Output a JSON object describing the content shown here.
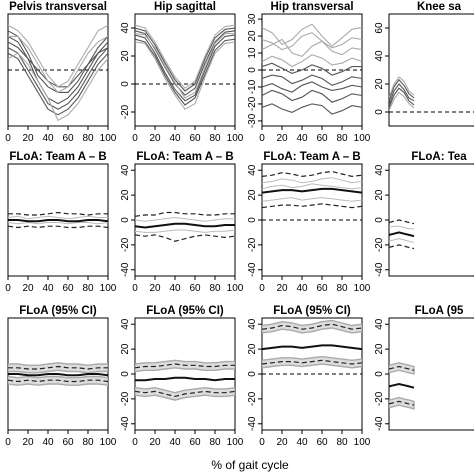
{
  "figure": {
    "xlabel": "% of gait cycle"
  },
  "chart_data": [
    {
      "type": "line",
      "title": "Pelvis transversal",
      "row": 0,
      "col": 0,
      "xlim": [
        0,
        100
      ],
      "ylim": [
        -10,
        10
      ],
      "yticks": [],
      "xticks": [
        0,
        20,
        40,
        60,
        80,
        100
      ],
      "zero_line": true,
      "series_kind": "curves",
      "x": [
        0,
        10,
        20,
        30,
        40,
        50,
        60,
        70,
        80,
        90,
        100
      ],
      "series": [
        {
          "color": "#555555",
          "values": [
            6,
            5,
            2,
            -2,
            -5,
            -6,
            -5,
            -3,
            0,
            3,
            5
          ]
        },
        {
          "color": "#555555",
          "values": [
            4,
            3,
            0,
            -3,
            -6,
            -7,
            -6,
            -4,
            -1,
            2,
            4
          ]
        },
        {
          "color": "#555555",
          "values": [
            7,
            6,
            3,
            -1,
            -3,
            -4,
            -4,
            -2,
            1,
            4,
            6
          ]
        },
        {
          "color": "#555555",
          "values": [
            3,
            2,
            -1,
            -4,
            -7,
            -8,
            -7,
            -5,
            -2,
            1,
            3
          ]
        },
        {
          "color": "#555555",
          "values": [
            5,
            4,
            2,
            0,
            -2,
            -3,
            -3,
            -1,
            1,
            3,
            4
          ]
        },
        {
          "color": "#aaaaaa",
          "values": [
            6,
            6,
            4,
            1,
            -2,
            -4,
            -3,
            0,
            3,
            5,
            6
          ]
        },
        {
          "color": "#aaaaaa",
          "values": [
            2,
            3,
            1,
            -2,
            -5,
            -9,
            -8,
            -6,
            -3,
            0,
            2
          ]
        },
        {
          "color": "#aaaaaa",
          "values": [
            8,
            7,
            5,
            2,
            -1,
            -3,
            -2,
            1,
            4,
            7,
            8
          ]
        }
      ]
    },
    {
      "type": "line",
      "title": "Hip sagittal",
      "row": 0,
      "col": 1,
      "xlim": [
        0,
        100
      ],
      "ylim": [
        -30,
        50
      ],
      "yticks": [
        -20,
        0,
        20,
        40
      ],
      "xticks": [
        0,
        20,
        40,
        60,
        80,
        100
      ],
      "zero_line": true,
      "series_kind": "curves",
      "x": [
        0,
        10,
        20,
        30,
        40,
        50,
        60,
        70,
        80,
        90,
        100
      ],
      "series": [
        {
          "color": "#555555",
          "values": [
            38,
            36,
            25,
            12,
            0,
            -8,
            -3,
            15,
            30,
            37,
            38
          ]
        },
        {
          "color": "#555555",
          "values": [
            35,
            33,
            22,
            8,
            -4,
            -12,
            -8,
            10,
            27,
            34,
            35
          ]
        },
        {
          "color": "#555555",
          "values": [
            40,
            38,
            28,
            15,
            3,
            -5,
            0,
            18,
            33,
            39,
            40
          ]
        },
        {
          "color": "#555555",
          "values": [
            32,
            30,
            20,
            6,
            -6,
            -15,
            -10,
            7,
            24,
            31,
            32
          ]
        },
        {
          "color": "#aaaaaa",
          "values": [
            36,
            35,
            26,
            13,
            1,
            -10,
            -6,
            12,
            29,
            36,
            36
          ]
        },
        {
          "color": "#aaaaaa",
          "values": [
            30,
            29,
            18,
            4,
            -8,
            -18,
            -14,
            5,
            22,
            29,
            30
          ]
        },
        {
          "color": "#aaaaaa",
          "values": [
            42,
            40,
            30,
            17,
            5,
            -3,
            2,
            20,
            35,
            41,
            42
          ]
        }
      ]
    },
    {
      "type": "line",
      "title": "Hip transversal",
      "row": 0,
      "col": 2,
      "xlim": [
        0,
        100
      ],
      "ylim": [
        -33,
        33
      ],
      "yticks": [
        -30,
        -20,
        -10,
        0,
        10,
        20,
        30
      ],
      "xticks": [
        0,
        20,
        40,
        60,
        80,
        100
      ],
      "zero_line": true,
      "series_kind": "curves",
      "x": [
        0,
        10,
        20,
        30,
        40,
        50,
        60,
        70,
        80,
        90,
        100
      ],
      "series": [
        {
          "color": "#555555",
          "values": [
            -5,
            -3,
            -4,
            -8,
            -6,
            -3,
            -5,
            -9,
            -7,
            -4,
            -5
          ]
        },
        {
          "color": "#555555",
          "values": [
            -15,
            -12,
            -14,
            -18,
            -16,
            -12,
            -14,
            -19,
            -17,
            -14,
            -15
          ]
        },
        {
          "color": "#555555",
          "values": [
            -22,
            -20,
            -23,
            -25,
            -22,
            -20,
            -21,
            -26,
            -24,
            -21,
            -22
          ]
        },
        {
          "color": "#555555",
          "values": [
            2,
            4,
            1,
            -2,
            0,
            3,
            1,
            -3,
            -1,
            2,
            2
          ]
        },
        {
          "color": "#555555",
          "values": [
            -10,
            -8,
            -11,
            -13,
            -9,
            -7,
            -10,
            -12,
            -11,
            -9,
            -10
          ]
        },
        {
          "color": "#aaaaaa",
          "values": [
            25,
            22,
            15,
            18,
            24,
            27,
            20,
            14,
            19,
            24,
            25
          ]
        },
        {
          "color": "#aaaaaa",
          "values": [
            12,
            15,
            18,
            10,
            8,
            14,
            17,
            11,
            9,
            13,
            12
          ]
        },
        {
          "color": "#aaaaaa",
          "values": [
            5,
            8,
            6,
            2,
            5,
            9,
            7,
            3,
            4,
            7,
            5
          ]
        },
        {
          "color": "#aaaaaa",
          "values": [
            18,
            16,
            12,
            14,
            20,
            22,
            17,
            13,
            15,
            19,
            18
          ]
        }
      ]
    },
    {
      "type": "line",
      "title": "Knee sa",
      "row": 0,
      "col": 3,
      "xlim": [
        0,
        100
      ],
      "ylim": [
        -10,
        70
      ],
      "yticks": [
        0,
        20,
        40,
        60
      ],
      "xticks": [],
      "zero_line": true,
      "series_kind": "curves",
      "x": [
        0,
        5,
        10,
        15,
        20,
        25
      ],
      "series": [
        {
          "color": "#555555",
          "values": [
            5,
            15,
            20,
            16,
            10,
            8
          ]
        },
        {
          "color": "#555555",
          "values": [
            8,
            18,
            23,
            19,
            13,
            10
          ]
        },
        {
          "color": "#555555",
          "values": [
            3,
            12,
            17,
            14,
            8,
            5
          ]
        },
        {
          "color": "#aaaaaa",
          "values": [
            10,
            20,
            25,
            22,
            15,
            12
          ]
        },
        {
          "color": "#aaaaaa",
          "values": [
            1,
            9,
            14,
            11,
            6,
            3
          ]
        }
      ]
    },
    {
      "type": "line",
      "title": "FLoA: Team A – B",
      "row": 1,
      "col": 0,
      "xlim": [
        0,
        100
      ],
      "ylim": [
        -45,
        45
      ],
      "yticks": [],
      "xticks": [
        0,
        20,
        40,
        60,
        80,
        100
      ],
      "zero_line": false,
      "series_kind": "floa",
      "x": [
        0,
        10,
        20,
        30,
        40,
        50,
        60,
        70,
        80,
        90,
        100
      ],
      "mean": [
        0,
        0,
        -1,
        -1,
        0,
        0,
        -1,
        -1,
        0,
        0,
        -1
      ],
      "upper": [
        5,
        5,
        4,
        4,
        5,
        6,
        5,
        5,
        4,
        5,
        5
      ],
      "lower": [
        -5,
        -6,
        -5,
        -6,
        -5,
        -5,
        -6,
        -6,
        -5,
        -5,
        -6
      ],
      "gray": [
        [
          2,
          3,
          1,
          2,
          3,
          2,
          1,
          2,
          3,
          2,
          2
        ],
        [
          -2,
          -3,
          -2,
          -3,
          -2,
          -2,
          -3,
          -2,
          -2,
          -3,
          -2
        ]
      ]
    },
    {
      "type": "line",
      "title": "FLoA: Team A – B",
      "row": 1,
      "col": 1,
      "xlim": [
        0,
        100
      ],
      "ylim": [
        -45,
        45
      ],
      "yticks": [
        -40,
        -20,
        0,
        20,
        40
      ],
      "xticks": [
        0,
        20,
        40,
        60,
        80,
        100
      ],
      "zero_line": false,
      "series_kind": "floa",
      "x": [
        0,
        10,
        20,
        30,
        40,
        50,
        60,
        70,
        80,
        90,
        100
      ],
      "mean": [
        -5,
        -6,
        -5,
        -4,
        -3,
        -3,
        -4,
        -5,
        -5,
        -4,
        -4
      ],
      "upper": [
        3,
        4,
        4,
        6,
        6,
        5,
        5,
        4,
        4,
        5,
        5
      ],
      "lower": [
        -12,
        -13,
        -12,
        -14,
        -17,
        -15,
        -13,
        -12,
        -13,
        -14,
        -13
      ],
      "gray": [
        [
          0,
          -1,
          0,
          1,
          2,
          1,
          0,
          -1,
          0,
          1,
          1
        ],
        [
          -9,
          -10,
          -10,
          -9,
          -8,
          -8,
          -9,
          -10,
          -9,
          -9,
          -8
        ]
      ]
    },
    {
      "type": "line",
      "title": "FLoA: Team A – B",
      "row": 1,
      "col": 2,
      "xlim": [
        0,
        100
      ],
      "ylim": [
        -45,
        45
      ],
      "yticks": [
        -40,
        -20,
        0,
        20,
        40
      ],
      "xticks": [
        0,
        20,
        40,
        60,
        80,
        100
      ],
      "zero_line": true,
      "series_kind": "floa",
      "x": [
        0,
        10,
        20,
        30,
        40,
        50,
        60,
        70,
        80,
        90,
        100
      ],
      "mean": [
        22,
        23,
        24,
        24,
        23,
        24,
        25,
        25,
        24,
        23,
        22
      ],
      "upper": [
        35,
        36,
        38,
        37,
        35,
        36,
        38,
        39,
        37,
        35,
        36
      ],
      "lower": [
        10,
        11,
        12,
        12,
        11,
        12,
        13,
        12,
        11,
        10,
        11
      ],
      "gray": [
        [
          30,
          31,
          33,
          32,
          30,
          31,
          33,
          34,
          32,
          30,
          31
        ],
        [
          15,
          16,
          17,
          18,
          16,
          17,
          18,
          17,
          16,
          15,
          16
        ],
        [
          25,
          27,
          28,
          26,
          27,
          29,
          28,
          27,
          26,
          25,
          26
        ]
      ]
    },
    {
      "type": "line",
      "title": "FLoA: Tea",
      "row": 1,
      "col": 3,
      "xlim": [
        0,
        100
      ],
      "ylim": [
        -45,
        45
      ],
      "yticks": [
        -40,
        -20,
        0,
        20,
        40
      ],
      "xticks": [],
      "zero_line": false,
      "series_kind": "floa",
      "x": [
        0,
        5,
        10,
        15,
        20,
        25
      ],
      "mean": [
        -12,
        -11,
        -10,
        -11,
        -12,
        -13
      ],
      "upper": [
        -2,
        -1,
        0,
        -1,
        -2,
        -3
      ],
      "lower": [
        -22,
        -21,
        -20,
        -21,
        -22,
        -23
      ],
      "gray": [
        [
          -6,
          -5,
          -5,
          -6,
          -7,
          -7
        ],
        [
          -17,
          -16,
          -15,
          -16,
          -17,
          -18
        ]
      ]
    },
    {
      "type": "line",
      "title": "FLoA (95% CI)",
      "row": 2,
      "col": 0,
      "xlim": [
        0,
        100
      ],
      "ylim": [
        -45,
        45
      ],
      "yticks": [],
      "xticks": [
        0,
        20,
        40,
        60,
        80,
        100
      ],
      "zero_line": false,
      "series_kind": "ci",
      "x": [
        0,
        10,
        20,
        30,
        40,
        50,
        60,
        70,
        80,
        90,
        100
      ],
      "mean": [
        0,
        0,
        -1,
        -1,
        0,
        0,
        -1,
        -1,
        0,
        0,
        -1
      ],
      "upper": [
        5,
        5,
        4,
        4,
        5,
        6,
        5,
        5,
        4,
        5,
        5
      ],
      "lower": [
        -5,
        -6,
        -5,
        -6,
        -5,
        -5,
        -6,
        -6,
        -5,
        -5,
        -6
      ]
    },
    {
      "type": "line",
      "title": "FLoA (95% CI)",
      "row": 2,
      "col": 1,
      "xlim": [
        0,
        100
      ],
      "ylim": [
        -45,
        45
      ],
      "yticks": [
        -40,
        -20,
        0,
        20,
        40
      ],
      "xticks": [
        0,
        20,
        40,
        60,
        80,
        100
      ],
      "zero_line": false,
      "series_kind": "ci",
      "x": [
        0,
        10,
        20,
        30,
        40,
        50,
        60,
        70,
        80,
        90,
        100
      ],
      "mean": [
        -5,
        -5,
        -4,
        -4,
        -3,
        -3,
        -4,
        -4,
        -5,
        -4,
        -4
      ],
      "upper": [
        5,
        6,
        6,
        7,
        8,
        7,
        7,
        6,
        6,
        7,
        7
      ],
      "lower": [
        -14,
        -15,
        -14,
        -16,
        -18,
        -16,
        -15,
        -14,
        -15,
        -15,
        -14
      ]
    },
    {
      "type": "line",
      "title": "FLoA (95% CI)",
      "row": 2,
      "col": 2,
      "xlim": [
        0,
        100
      ],
      "ylim": [
        -45,
        45
      ],
      "yticks": [
        -40,
        -20,
        0,
        20,
        40
      ],
      "xticks": [
        0,
        20,
        40,
        60,
        80,
        100
      ],
      "zero_line": true,
      "series_kind": "ci",
      "x": [
        0,
        10,
        20,
        30,
        40,
        50,
        60,
        70,
        80,
        90,
        100
      ],
      "mean": [
        20,
        21,
        22,
        22,
        21,
        22,
        23,
        23,
        22,
        21,
        20
      ],
      "upper": [
        36,
        37,
        39,
        38,
        36,
        37,
        39,
        40,
        38,
        36,
        37
      ],
      "lower": [
        8,
        9,
        10,
        10,
        9,
        10,
        11,
        10,
        9,
        8,
        9
      ]
    },
    {
      "type": "line",
      "title": "FLoA (95",
      "row": 2,
      "col": 3,
      "xlim": [
        0,
        100
      ],
      "ylim": [
        -45,
        45
      ],
      "yticks": [
        -40,
        -20,
        0,
        20,
        40
      ],
      "xticks": [],
      "zero_line": false,
      "series_kind": "ci",
      "x": [
        0,
        5,
        10,
        15,
        20,
        25
      ],
      "mean": [
        -10,
        -9,
        -8,
        -9,
        -10,
        -11
      ],
      "upper": [
        4,
        5,
        6,
        5,
        4,
        3
      ],
      "lower": [
        -24,
        -23,
        -22,
        -23,
        -24,
        -25
      ]
    }
  ]
}
